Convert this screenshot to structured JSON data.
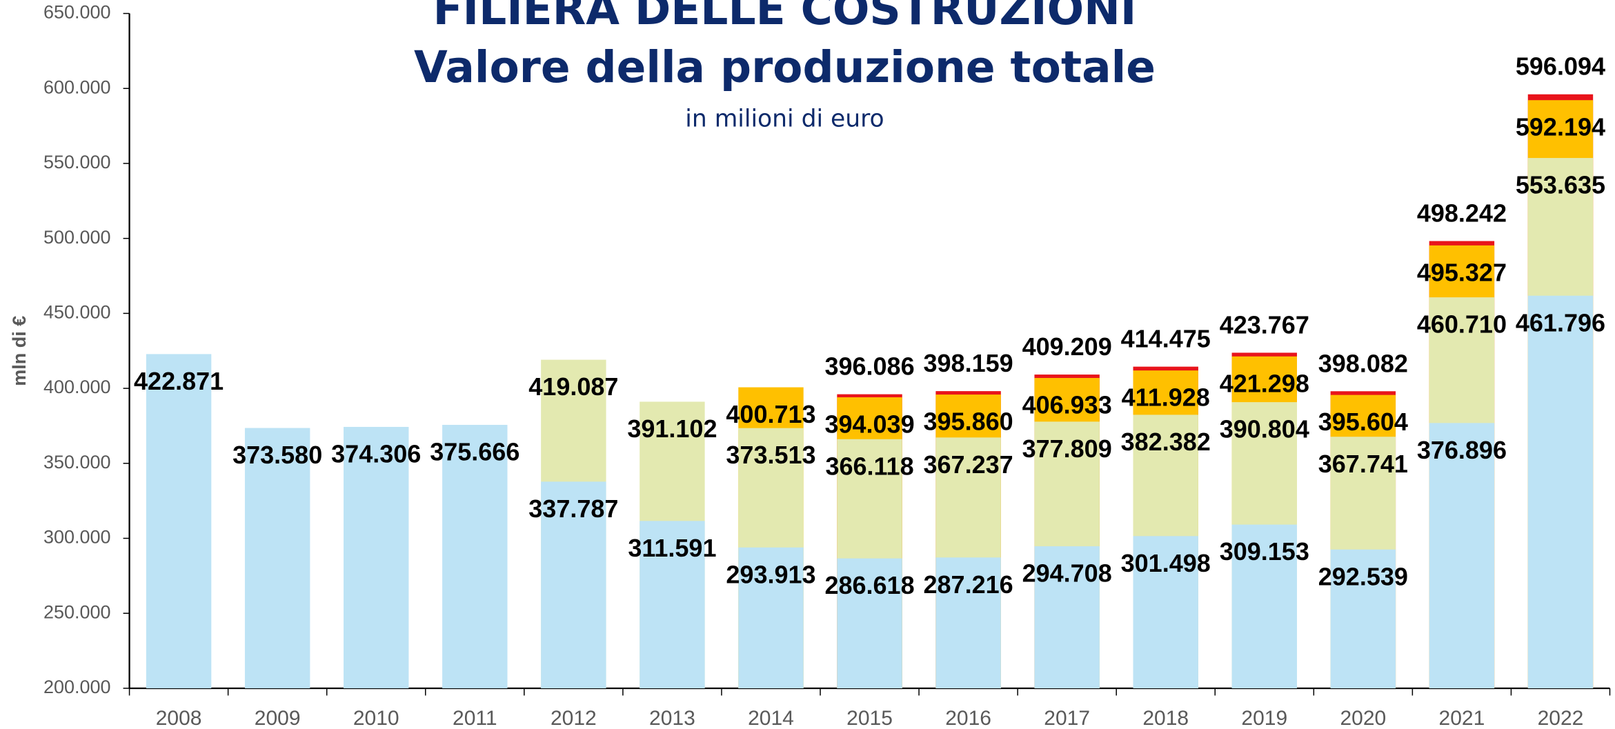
{
  "chart_data": {
    "type": "bar",
    "overlap": true,
    "title": "FILIERA DELLE COSTRUZIONI",
    "subtitle": "Valore della produzione totale",
    "note": "in milioni di euro",
    "ylabel": "mln di €",
    "categories": [
      "2008",
      "2009",
      "2010",
      "2011",
      "2012",
      "2013",
      "2014",
      "2015",
      "2016",
      "2017",
      "2018",
      "2019",
      "2020",
      "2021",
      "2022"
    ],
    "ylim": [
      200000,
      650000
    ],
    "yticks": [
      {
        "value": 200000,
        "label": "200.000"
      },
      {
        "value": 250000,
        "label": "250.000"
      },
      {
        "value": 300000,
        "label": "300.000"
      },
      {
        "value": 350000,
        "label": "350.000"
      },
      {
        "value": 400000,
        "label": "400.000"
      },
      {
        "value": 450000,
        "label": "450.000"
      },
      {
        "value": 500000,
        "label": "500.000"
      },
      {
        "value": 550000,
        "label": "550.000"
      },
      {
        "value": 600000,
        "label": "600.000"
      },
      {
        "value": 650000,
        "label": "650.000"
      }
    ],
    "grid": false,
    "series": [
      {
        "color": "#bde3f5",
        "values": [
          422871,
          373580,
          374306,
          375666,
          337787,
          311591,
          293913,
          286618,
          287216,
          294708,
          301498,
          309153,
          292539,
          376896,
          461796
        ],
        "value_labels": [
          "422.871",
          "373.580",
          "374.306",
          "375.666",
          "337.787",
          "311.591",
          "293.913",
          "286.618",
          "287.216",
          "294.708",
          "301.498",
          "309.153",
          "292.539",
          "376.896",
          "461.796"
        ]
      },
      {
        "color": "#e3e9b0",
        "values": [
          null,
          null,
          null,
          null,
          419087,
          391102,
          373513,
          366118,
          367237,
          377809,
          382382,
          390804,
          367741,
          460710,
          553635
        ],
        "value_labels": [
          null,
          null,
          null,
          null,
          "419.087",
          "391.102",
          "373.513",
          "366.118",
          "367.237",
          "377.809",
          "382.382",
          "390.804",
          "367.741",
          "460.710",
          "553.635"
        ]
      },
      {
        "color": "#ffc000",
        "values": [
          null,
          null,
          null,
          null,
          null,
          null,
          400713,
          394039,
          395860,
          406933,
          411928,
          421298,
          395604,
          495327,
          592194
        ],
        "value_labels": [
          null,
          null,
          null,
          null,
          null,
          null,
          "400.713",
          "394.039",
          "395.860",
          "406.933",
          "411.928",
          "421.298",
          "395.604",
          "495.327",
          "592.194"
        ]
      },
      {
        "color": "#e8141b",
        "values": [
          null,
          null,
          null,
          null,
          null,
          null,
          null,
          396086,
          398159,
          409209,
          414475,
          423767,
          398082,
          498242,
          596094
        ],
        "value_labels": [
          null,
          null,
          null,
          null,
          null,
          null,
          null,
          "396.086",
          "398.159",
          "409.209",
          "414.475",
          "423.767",
          "398.082",
          "498.242",
          "596.094"
        ]
      }
    ]
  }
}
